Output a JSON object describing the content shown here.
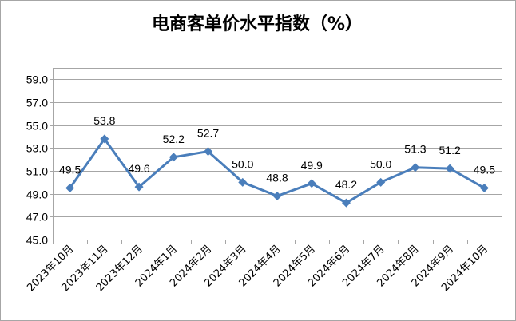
{
  "chart_data": {
    "type": "line",
    "title": "电商客单价水平指数（%）",
    "xlabel": "",
    "ylabel": "",
    "categories": [
      "2023年10月",
      "2023年11月",
      "2023年12月",
      "2024年1月",
      "2024年2月",
      "2024年3月",
      "2024年4月",
      "2024年5月",
      "2024年6月",
      "2024年7月",
      "2024年8月",
      "2024年9月",
      "2024年10月"
    ],
    "series": [
      {
        "values": [
          49.5,
          53.8,
          49.6,
          52.2,
          52.7,
          50.0,
          48.8,
          49.9,
          48.2,
          50.0,
          51.3,
          51.2,
          49.5
        ]
      }
    ],
    "data_labels": [
      "49.5",
      "53.8",
      "49.6",
      "52.2",
      "52.7",
      "50.0",
      "48.8",
      "49.9",
      "48.2",
      "50.0",
      "51.3",
      "51.2",
      "49.5"
    ],
    "y_ticks": [
      "45.0",
      "47.0",
      "49.0",
      "51.0",
      "53.0",
      "55.0",
      "57.0",
      "59.0"
    ],
    "ylim": [
      45,
      60
    ],
    "grid": true,
    "legend": "none",
    "colors": {
      "line": "#4a7ebb",
      "marker": "#4a7ebb",
      "grid": "#a6a6a6",
      "axis": "#a6a6a6"
    }
  }
}
